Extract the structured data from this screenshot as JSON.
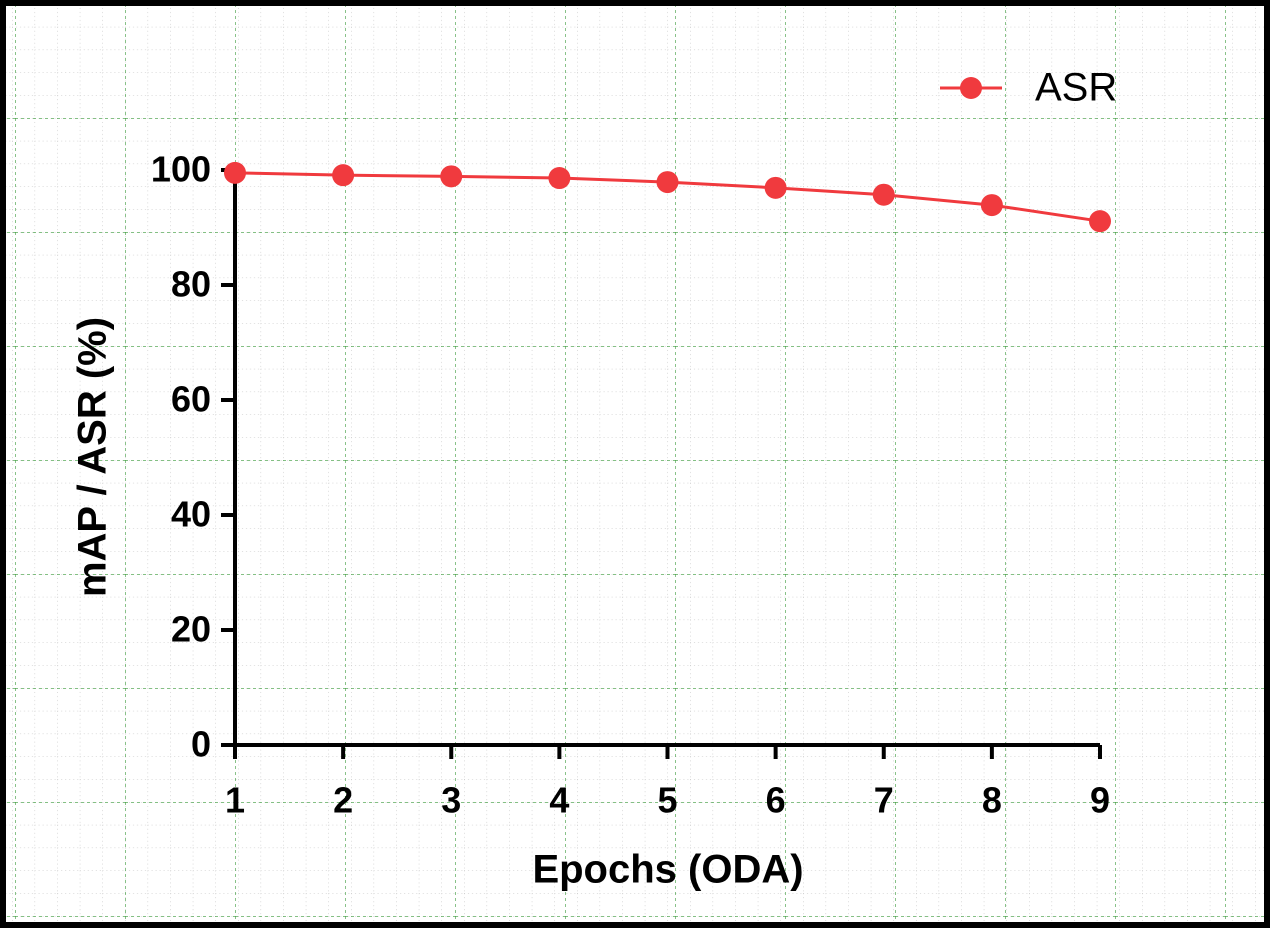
{
  "chart_data": {
    "type": "line",
    "x": [
      1,
      2,
      3,
      4,
      5,
      6,
      7,
      8,
      9
    ],
    "series": [
      {
        "name": "ASR",
        "color": "#f03a3e",
        "values": [
          99.5,
          99.1,
          98.9,
          98.6,
          97.9,
          96.9,
          95.7,
          93.9,
          91.1
        ]
      }
    ],
    "xlabel": "Epochs (ODA)",
    "ylabel": "mAP / ASR (%)",
    "xlim": [
      1,
      9
    ],
    "xticks": [
      1,
      2,
      3,
      4,
      5,
      6,
      7,
      8,
      9
    ],
    "ylim": [
      0,
      100
    ],
    "yticks": [
      0,
      20,
      40,
      60,
      80,
      100
    ],
    "legend": "upper right"
  }
}
